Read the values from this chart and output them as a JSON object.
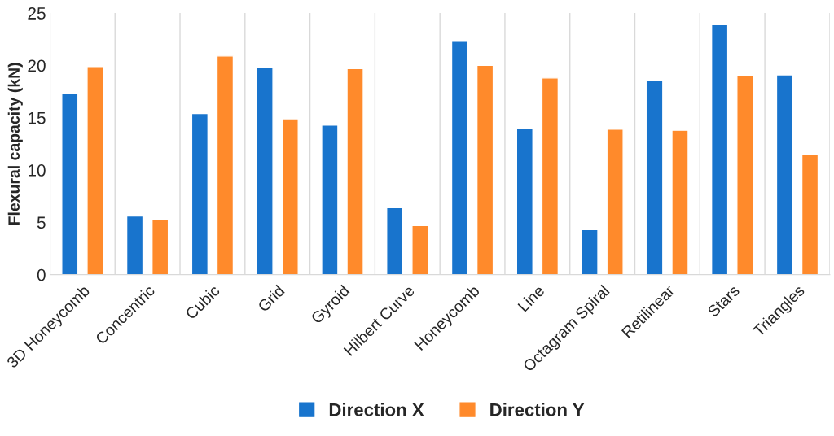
{
  "chart_data": {
    "type": "bar",
    "ylabel": "Flexural capacity (kN)",
    "categories": [
      "3D Honeycomb",
      "Concentric",
      "Cubic",
      "Grid",
      "Gyroid",
      "Hilbert Curve",
      "Honeycomb",
      "Line",
      "Octagram Spiral",
      "Retilinear",
      "Stars",
      "Triangles"
    ],
    "series": [
      {
        "name": "Direction X",
        "color": "#1874cd",
        "values": [
          17.3,
          5.6,
          15.4,
          19.8,
          14.3,
          6.4,
          22.3,
          14.0,
          4.3,
          18.6,
          23.9,
          19.1
        ]
      },
      {
        "name": "Direction Y",
        "color": "#ff8a2b",
        "values": [
          19.9,
          5.3,
          20.9,
          14.9,
          19.7,
          4.7,
          20.0,
          18.8,
          13.9,
          13.8,
          19.0,
          11.5
        ]
      }
    ],
    "ylim": [
      0,
      25
    ],
    "yticks": [
      0,
      5,
      10,
      15,
      20,
      25
    ],
    "grid": "x",
    "legend": "bottom"
  }
}
